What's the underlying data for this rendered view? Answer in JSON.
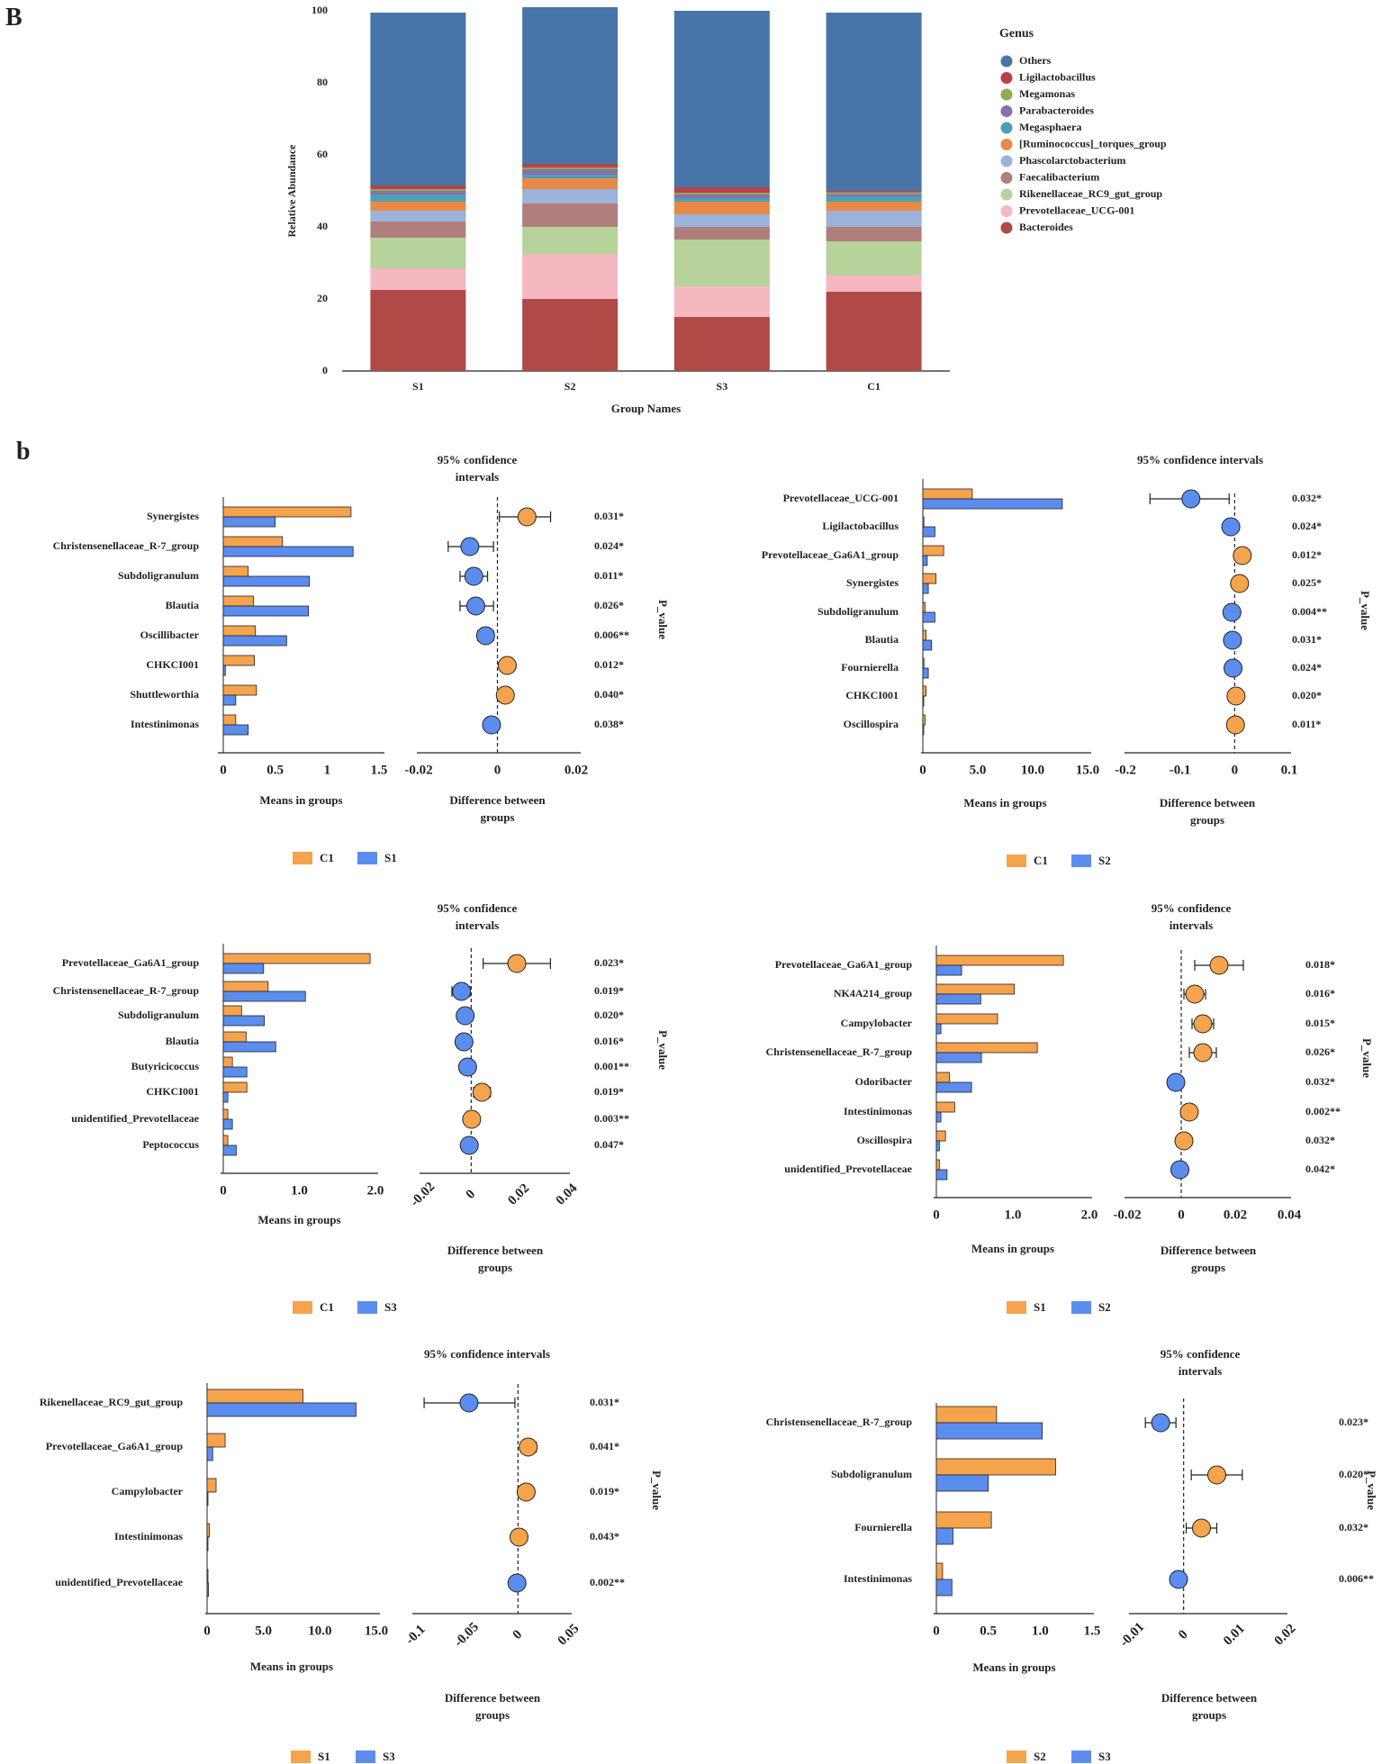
{
  "panel_labels": {
    "top": "B",
    "bottom": "b"
  },
  "colors": {
    "orange": "#f5a34d",
    "blue": "#5b8def",
    "outline": "#222222"
  },
  "chart_data": [
    {
      "id": "stacked",
      "type": "bar",
      "stacked": true,
      "title": "",
      "xlabel": "Group Names",
      "ylabel": "Relative Abundance",
      "ylim": [
        0,
        100
      ],
      "yticks": [
        "0",
        "20",
        "40",
        "60",
        "80",
        "100"
      ],
      "categories": [
        "S1",
        "S2",
        "S3",
        "C1"
      ],
      "legend_title": "Genus",
      "series": [
        {
          "name": "Bacteroides",
          "color": "#b04a47",
          "values": [
            22.5,
            20.0,
            15.0,
            22.0
          ]
        },
        {
          "name": "Prevotellaceae_UCG-001",
          "color": "#f5b8c0",
          "values": [
            6.0,
            12.5,
            8.5,
            4.5
          ]
        },
        {
          "name": "Rikenellaceae_RC9_gut_group",
          "color": "#b5d39a",
          "values": [
            8.5,
            7.5,
            13.0,
            9.5
          ]
        },
        {
          "name": "Faecalibacterium",
          "color": "#b07f7c",
          "values": [
            4.5,
            6.5,
            3.5,
            4.0
          ]
        },
        {
          "name": "Phascolarctobacterium",
          "color": "#9bb2d9",
          "values": [
            3.0,
            4.0,
            3.5,
            4.5
          ]
        },
        {
          "name": "[Ruminococcus]_torques_group",
          "color": "#e88a45",
          "values": [
            2.5,
            3.0,
            3.5,
            2.5
          ]
        },
        {
          "name": "Megasphaera",
          "color": "#4e9fb4",
          "values": [
            2.0,
            1.0,
            1.0,
            1.5
          ]
        },
        {
          "name": "Parabacteroides",
          "color": "#8672a8",
          "values": [
            1.0,
            1.5,
            1.0,
            0.7
          ]
        },
        {
          "name": "Megamonas",
          "color": "#8faa4f",
          "values": [
            0.5,
            0.5,
            0.5,
            0.4
          ]
        },
        {
          "name": "Ligilactobacillus",
          "color": "#b9404a",
          "values": [
            1.0,
            1.0,
            1.5,
            0.4
          ]
        },
        {
          "name": "Others",
          "color": "#4775a8",
          "values": [
            48.0,
            43.5,
            49.0,
            49.5
          ]
        }
      ],
      "legend_order": [
        "Others",
        "Ligilactobacillus",
        "Megamonas",
        "Parabacteroides",
        "Megasphaera",
        "[Ruminococcus]_torques_group",
        "Phascolarctobacterium",
        "Faecalibacterium",
        "Rikenellaceae_RC9_gut_group",
        "Prevotellaceae_UCG-001",
        "Bacteroides"
      ]
    },
    {
      "id": "C1_vs_S1",
      "type": "bar",
      "subtype": "extended_error_bar",
      "groups": [
        "C1",
        "S1"
      ],
      "ci_title": [
        "95% confidence",
        "intervals"
      ],
      "means_xlabel": "Means in groups",
      "diff_xlabel": [
        "Difference between",
        "groups"
      ],
      "pvalue_label": "P_value",
      "means_xlim": [
        0,
        1.5
      ],
      "means_ticks": [
        "0",
        "0.5",
        "1",
        "1.5"
      ],
      "diff_xlim": [
        -0.02,
        0.02
      ],
      "diff_ticks": [
        "-0.02",
        "0",
        "0.02"
      ],
      "features": [
        {
          "name": "Synergistes",
          "mean_a": 1.23,
          "mean_b": 0.5,
          "diff": 0.0075,
          "ci": [
            0.0005,
            0.0135
          ],
          "p": "0.031*"
        },
        {
          "name": "Christensenellaceae_R-7_group",
          "mean_a": 0.57,
          "mean_b": 1.25,
          "diff": -0.007,
          "ci": [
            -0.0125,
            -0.001
          ],
          "p": "0.024*"
        },
        {
          "name": "Subdoligranulum",
          "mean_a": 0.24,
          "mean_b": 0.83,
          "diff": -0.006,
          "ci": [
            -0.0095,
            -0.0025
          ],
          "p": "0.011*"
        },
        {
          "name": "Blautia",
          "mean_a": 0.29,
          "mean_b": 0.82,
          "diff": -0.0055,
          "ci": [
            -0.0095,
            -0.001
          ],
          "p": "0.026*"
        },
        {
          "name": "Oscillibacter",
          "mean_a": 0.31,
          "mean_b": 0.61,
          "diff": -0.003,
          "ci": [
            -0.005,
            -0.001
          ],
          "p": "0.006**"
        },
        {
          "name": "CHKCI001",
          "mean_a": 0.3,
          "mean_b": 0.02,
          "diff": 0.0025,
          "ci": [
            0.001,
            0.004
          ],
          "p": "0.012*"
        },
        {
          "name": "Shuttleworthia",
          "mean_a": 0.32,
          "mean_b": 0.12,
          "diff": 0.002,
          "ci": [
            0.0005,
            0.0035
          ],
          "p": "0.040*"
        },
        {
          "name": "Intestinimonas",
          "mean_a": 0.12,
          "mean_b": 0.24,
          "diff": -0.0015,
          "ci": [
            -0.003,
            -0.0002
          ],
          "p": "0.038*"
        }
      ]
    },
    {
      "id": "C1_vs_S2",
      "type": "bar",
      "subtype": "extended_error_bar",
      "groups": [
        "C1",
        "S2"
      ],
      "ci_title": [
        "95% confidence intervals"
      ],
      "means_xlabel": "Means in groups",
      "diff_xlabel": [
        "Difference between",
        "groups"
      ],
      "pvalue_label": "P_value",
      "means_xlim": [
        0,
        15
      ],
      "means_ticks": [
        "0",
        "5.0",
        "10.0",
        "15.0"
      ],
      "diff_xlim": [
        -0.2,
        0.1
      ],
      "diff_ticks": [
        "-0.2",
        "-0.1",
        "0",
        "0.1"
      ],
      "features": [
        {
          "name": "Prevotellaceae_UCG-001",
          "mean_a": 4.5,
          "mean_b": 12.7,
          "diff": -0.08,
          "ci": [
            -0.155,
            -0.01
          ],
          "p": "0.032*"
        },
        {
          "name": "Ligilactobacillus",
          "mean_a": 0.1,
          "mean_b": 1.1,
          "diff": -0.007,
          "ci": [
            -0.012,
            -0.002
          ],
          "p": "0.024*"
        },
        {
          "name": "Prevotellaceae_Ga6A1_group",
          "mean_a": 1.9,
          "mean_b": 0.4,
          "diff": 0.014,
          "ci": [
            0.008,
            0.02
          ],
          "p": "0.012*"
        },
        {
          "name": "Synergistes",
          "mean_a": 1.2,
          "mean_b": 0.5,
          "diff": 0.009,
          "ci": [
            0.004,
            0.014
          ],
          "p": "0.025*"
        },
        {
          "name": "Subdoligranulum",
          "mean_a": 0.2,
          "mean_b": 1.1,
          "diff": -0.005,
          "ci": [
            -0.009,
            -0.001
          ],
          "p": "0.004**"
        },
        {
          "name": "Blautia",
          "mean_a": 0.3,
          "mean_b": 0.8,
          "diff": -0.004,
          "ci": [
            -0.007,
            -0.001
          ],
          "p": "0.031*"
        },
        {
          "name": "Fournierella",
          "mean_a": 0.1,
          "mean_b": 0.5,
          "diff": -0.003,
          "ci": [
            -0.006,
            -0.0005
          ],
          "p": "0.024*"
        },
        {
          "name": "CHKCI001",
          "mean_a": 0.3,
          "mean_b": 0.05,
          "diff": 0.0025,
          "ci": [
            0.0005,
            0.0045
          ],
          "p": "0.020*"
        },
        {
          "name": "Oscillospira",
          "mean_a": 0.2,
          "mean_b": 0.05,
          "diff": 0.0015,
          "ci": [
            0.0003,
            0.003
          ],
          "p": "0.011*"
        }
      ]
    },
    {
      "id": "C1_vs_S3",
      "type": "bar",
      "subtype": "extended_error_bar",
      "groups": [
        "C1",
        "S3"
      ],
      "ci_title": [
        "95% confidence",
        "intervals"
      ],
      "means_xlabel": "Means in groups",
      "diff_xlabel": [
        "Difference between",
        "groups"
      ],
      "pvalue_label": "P_value",
      "means_xlim": [
        0,
        2.0
      ],
      "means_ticks": [
        "0",
        "1.0",
        "2.0"
      ],
      "diff_xlim": [
        -0.02,
        0.04
      ],
      "diff_ticks": [
        "-0.02",
        "0",
        "0.02",
        "0.04"
      ],
      "diff_ticks_rotated": true,
      "features": [
        {
          "name": "Prevotellaceae_Ga6A1_group",
          "mean_a": 1.93,
          "mean_b": 0.53,
          "diff": 0.019,
          "ci": [
            0.005,
            0.033
          ],
          "p": "0.023*"
        },
        {
          "name": "Christensenellaceae_R-7_group",
          "mean_a": 0.59,
          "mean_b": 1.08,
          "diff": -0.004,
          "ci": [
            -0.008,
            -0.0005
          ],
          "p": "0.019*"
        },
        {
          "name": "Subdoligranulum",
          "mean_a": 0.24,
          "mean_b": 0.54,
          "diff": -0.0025,
          "ci": [
            -0.005,
            -0.0003
          ],
          "p": "0.020*"
        },
        {
          "name": "Blautia",
          "mean_a": 0.3,
          "mean_b": 0.69,
          "diff": -0.003,
          "ci": [
            -0.0055,
            -0.0005
          ],
          "p": "0.016*"
        },
        {
          "name": "Butyricicoccus",
          "mean_a": 0.12,
          "mean_b": 0.31,
          "diff": -0.0015,
          "ci": [
            -0.003,
            -0.0003
          ],
          "p": "0.001**"
        },
        {
          "name": "CHKCI001",
          "mean_a": 0.31,
          "mean_b": 0.06,
          "diff": 0.0045,
          "ci": [
            0.001,
            0.008
          ],
          "p": "0.019*"
        },
        {
          "name": "unidentified_Prevotellaceae",
          "mean_a": 0.06,
          "mean_b": 0.12,
          "diff": 0.0002,
          "ci": [
            -0.001,
            0.0015
          ],
          "p": "0.003**"
        },
        {
          "name": "Peptococcus",
          "mean_a": 0.06,
          "mean_b": 0.17,
          "diff": -0.0008,
          "ci": [
            -0.002,
            0.0003
          ],
          "p": "0.047*"
        }
      ]
    },
    {
      "id": "S1_vs_S2",
      "type": "bar",
      "subtype": "extended_error_bar",
      "groups": [
        "S1",
        "S2"
      ],
      "ci_title": [
        "95% confidence",
        "intervals"
      ],
      "means_xlabel": "Means in groups",
      "diff_xlabel": [
        "Difference between",
        "groups"
      ],
      "pvalue_label": "P_value",
      "means_xlim": [
        0,
        2.0
      ],
      "means_ticks": [
        "0",
        "1.0",
        "2.0"
      ],
      "diff_xlim": [
        -0.02,
        0.04
      ],
      "diff_ticks": [
        "-0.02",
        "0",
        "0.02",
        "0.04"
      ],
      "features": [
        {
          "name": "Prevotellaceae_Ga6A1_group",
          "mean_a": 1.66,
          "mean_b": 0.33,
          "diff": 0.014,
          "ci": [
            0.005,
            0.023
          ],
          "p": "0.018*"
        },
        {
          "name": "NK4A214_group",
          "mean_a": 1.02,
          "mean_b": 0.58,
          "diff": 0.005,
          "ci": [
            0.001,
            0.009
          ],
          "p": "0.016*"
        },
        {
          "name": "Campylobacter",
          "mean_a": 0.8,
          "mean_b": 0.06,
          "diff": 0.008,
          "ci": [
            0.004,
            0.012
          ],
          "p": "0.015*"
        },
        {
          "name": "Christensenellaceae_R-7_group",
          "mean_a": 1.32,
          "mean_b": 0.59,
          "diff": 0.008,
          "ci": [
            0.003,
            0.013
          ],
          "p": "0.026*"
        },
        {
          "name": "Odoribacter",
          "mean_a": 0.17,
          "mean_b": 0.46,
          "diff": -0.002,
          "ci": [
            -0.004,
            -0.0003
          ],
          "p": "0.032*"
        },
        {
          "name": "Intestinimonas",
          "mean_a": 0.24,
          "mean_b": 0.06,
          "diff": 0.003,
          "ci": [
            0.001,
            0.005
          ],
          "p": "0.002**"
        },
        {
          "name": "Oscillospira",
          "mean_a": 0.12,
          "mean_b": 0.04,
          "diff": 0.001,
          "ci": [
            0.0002,
            0.002
          ],
          "p": "0.032*"
        },
        {
          "name": "unidentified_Prevotellaceae",
          "mean_a": 0.04,
          "mean_b": 0.14,
          "diff": -0.0005,
          "ci": [
            -0.0015,
            0.0003
          ],
          "p": "0.042*"
        }
      ]
    },
    {
      "id": "S1_vs_S3",
      "type": "bar",
      "subtype": "extended_error_bar",
      "groups": [
        "S1",
        "S3"
      ],
      "ci_title": [
        "95% confidence intervals"
      ],
      "means_xlabel": "Means in groups",
      "diff_xlabel": [
        "Difference between",
        "groups"
      ],
      "pvalue_label": "P_value",
      "means_xlim": [
        0,
        15
      ],
      "means_ticks": [
        "0",
        "5.0",
        "10.0",
        "15.0"
      ],
      "diff_xlim": [
        -0.1,
        0.05
      ],
      "diff_ticks": [
        "-0.1",
        "-0.05",
        "0",
        "0.05"
      ],
      "diff_ticks_rotated": true,
      "features": [
        {
          "name": "Rikenellaceae_RC9_gut_group",
          "mean_a": 8.5,
          "mean_b": 13.2,
          "diff": -0.048,
          "ci": [
            -0.092,
            -0.003
          ],
          "p": "0.031*"
        },
        {
          "name": "Prevotellaceae_Ga6A1_group",
          "mean_a": 1.6,
          "mean_b": 0.5,
          "diff": 0.01,
          "ci": [
            0.004,
            0.018
          ],
          "p": "0.041*"
        },
        {
          "name": "Campylobacter",
          "mean_a": 0.8,
          "mean_b": 0.06,
          "diff": 0.008,
          "ci": [
            0.003,
            0.013
          ],
          "p": "0.019*"
        },
        {
          "name": "Intestinimonas",
          "mean_a": 0.2,
          "mean_b": 0.06,
          "diff": 0.001,
          "ci": [
            0.0002,
            0.002
          ],
          "p": "0.043*"
        },
        {
          "name": "unidentified_Prevotellaceae",
          "mean_a": 0.04,
          "mean_b": 0.12,
          "diff": -0.001,
          "ci": [
            -0.002,
            0.0002
          ],
          "p": "0.002**"
        }
      ]
    },
    {
      "id": "S2_vs_S3",
      "type": "bar",
      "subtype": "extended_error_bar",
      "groups": [
        "S2",
        "S3"
      ],
      "ci_title": [
        "95% confidence",
        "intervals"
      ],
      "means_xlabel": "Means in groups",
      "diff_xlabel": [
        "Difference between",
        "groups"
      ],
      "pvalue_label": "P_value",
      "means_xlim": [
        0,
        1.5
      ],
      "means_ticks": [
        "0",
        "0.5",
        "1.0",
        "1.5"
      ],
      "diff_xlim": [
        -0.01,
        0.02
      ],
      "diff_ticks": [
        "-0.01",
        "0",
        "0.01",
        "0.02"
      ],
      "diff_ticks_rotated": true,
      "features": [
        {
          "name": "Christensenellaceae_R-7_group",
          "mean_a": 0.58,
          "mean_b": 1.02,
          "diff": -0.0045,
          "ci": [
            -0.0075,
            -0.0015
          ],
          "p": "0.023*"
        },
        {
          "name": "Subdoligranulum",
          "mean_a": 1.15,
          "mean_b": 0.5,
          "diff": 0.0065,
          "ci": [
            0.0015,
            0.0115
          ],
          "p": "0.020*"
        },
        {
          "name": "Fournierella",
          "mean_a": 0.53,
          "mean_b": 0.16,
          "diff": 0.0035,
          "ci": [
            0.0005,
            0.0065
          ],
          "p": "0.032*"
        },
        {
          "name": "Intestinimonas",
          "mean_a": 0.06,
          "mean_b": 0.15,
          "diff": -0.001,
          "ci": [
            -0.002,
            0.0001
          ],
          "p": "0.006**"
        }
      ]
    }
  ]
}
